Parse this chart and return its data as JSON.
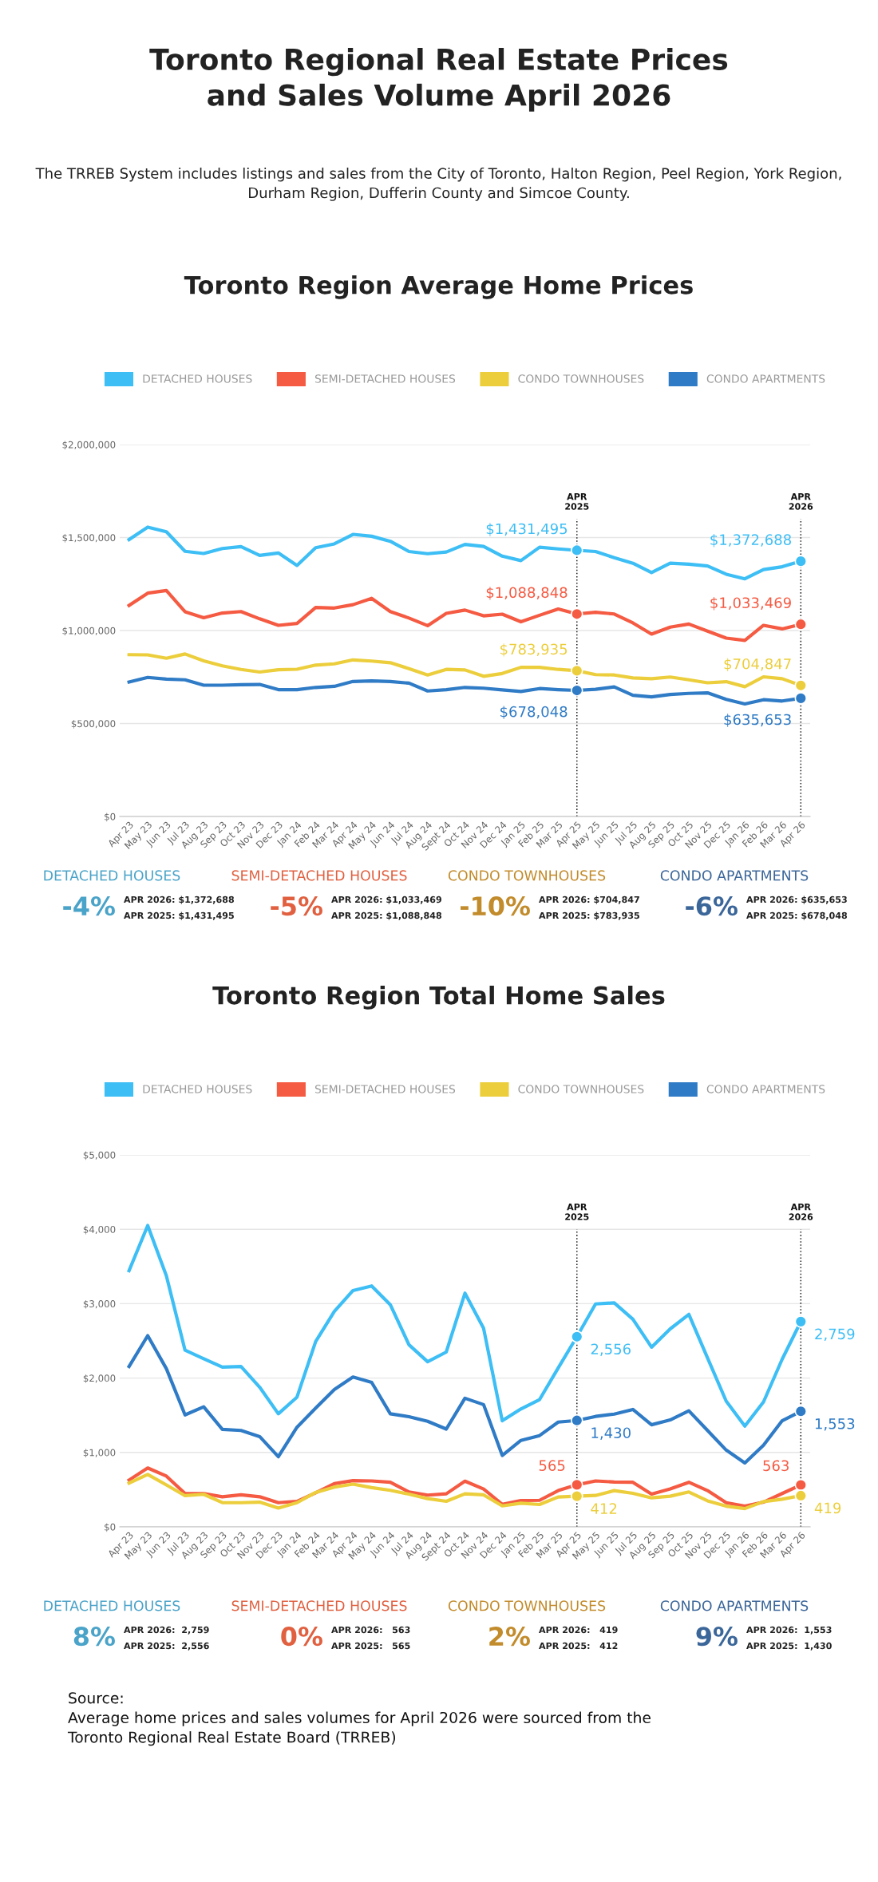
{
  "chart_data": [
    {
      "type": "other",
      "title": "Toronto Regional Real Estate Prices\nand Sales Volume April 2026",
      "subtitle": "The TRREB System includes listings and sales from the City of Toronto, Halton Region, Peel Region, York Region,\nDurham Region, Dufferin County and Simcoe County."
    },
    {
      "type": "line",
      "title": "Toronto Region Average Home Prices",
      "legend": "top",
      "grid": "y",
      "categories": [
        "Apr 23",
        "May 23",
        "Jun 23",
        "Jul 23",
        "Aug 23",
        "Sep 23",
        "Oct 23",
        "Nov 23",
        "Dec 23",
        "Jan 24",
        "Feb 24",
        "Mar 24",
        "Apr 24",
        "May 24",
        "Jun 24",
        "Jul 24",
        "Aug 24",
        "Sept 24",
        "Oct 24",
        "Nov 24",
        "Dec 24",
        "Jan 25",
        "Feb 25",
        "Mar 25",
        "Apr 25",
        "May 25",
        "Jun 25",
        "Jul 25",
        "Aug 25",
        "Sep 25",
        "Oct 25",
        "Nov 25",
        "Dec 25",
        "Jan 26",
        "Feb 26",
        "Mar 26",
        "Apr 26"
      ],
      "ylim": [
        0,
        2000000
      ],
      "yticks": [
        {
          "value": 0,
          "label": "$0"
        },
        {
          "value": 500000,
          "label": "$500,000"
        },
        {
          "value": 1000000,
          "label": "$1,000,000"
        },
        {
          "value": 1500000,
          "label": "$1,500,000"
        },
        {
          "value": 2000000,
          "label": "$2,000,000"
        }
      ],
      "ref_lines": [
        {
          "axis": "x",
          "value": "Apr 25",
          "label": "APR\n2025",
          "line_style": "dotted"
        },
        {
          "axis": "x",
          "value": "Apr 26",
          "label": "APR\n2026",
          "line_style": "dotted"
        }
      ],
      "series": [
        {
          "name": "DETACHED HOUSES",
          "color": "#3dbef5",
          "values": [
            1489000,
            1556000,
            1531000,
            1426000,
            1414000,
            1441000,
            1451000,
            1404000,
            1417000,
            1350000,
            1445000,
            1466000,
            1517000,
            1507000,
            1480000,
            1425000,
            1413000,
            1422000,
            1463000,
            1452000,
            1400000,
            1376000,
            1448000,
            1439000,
            1431495,
            1425000,
            1392000,
            1362000,
            1312000,
            1362000,
            1357000,
            1347000,
            1303000,
            1278000,
            1328000,
            1343000,
            1372688
          ],
          "value_labels": [
            null,
            null,
            null,
            null,
            null,
            null,
            null,
            null,
            null,
            null,
            null,
            null,
            null,
            null,
            null,
            null,
            null,
            null,
            null,
            null,
            null,
            null,
            null,
            null,
            "$1,431,495",
            null,
            null,
            null,
            null,
            null,
            null,
            null,
            null,
            null,
            null,
            null,
            "$1,372,688"
          ]
        },
        {
          "name": "SEMI-DETACHED HOUSES",
          "color": "#f55a42",
          "values": [
            1135000,
            1201000,
            1215000,
            1101000,
            1069000,
            1094000,
            1102000,
            1063000,
            1028000,
            1038000,
            1124000,
            1121000,
            1139000,
            1173000,
            1102000,
            1067000,
            1026000,
            1092000,
            1110000,
            1079000,
            1088000,
            1047000,
            1082000,
            1116000,
            1088848,
            1098000,
            1089000,
            1041000,
            981000,
            1018000,
            1035000,
            997000,
            959000,
            947000,
            1028000,
            1009000,
            1033469
          ],
          "value_labels": [
            null,
            null,
            null,
            null,
            null,
            null,
            null,
            null,
            null,
            null,
            null,
            null,
            null,
            null,
            null,
            null,
            null,
            null,
            null,
            null,
            null,
            null,
            null,
            null,
            "$1,088,848",
            null,
            null,
            null,
            null,
            null,
            null,
            null,
            null,
            null,
            null,
            null,
            "$1,033,469"
          ]
        },
        {
          "name": "CONDO TOWNHOUSES",
          "color": "#ecce3c",
          "values": [
            870000,
            869000,
            851000,
            874000,
            837000,
            810000,
            791000,
            777000,
            789000,
            792000,
            814000,
            821000,
            842000,
            836000,
            827000,
            795000,
            761000,
            791000,
            788000,
            754000,
            769000,
            802000,
            802000,
            791000,
            783935,
            763000,
            761000,
            745000,
            741000,
            750000,
            735000,
            719000,
            725000,
            698000,
            751000,
            741000,
            704847
          ],
          "value_labels": [
            null,
            null,
            null,
            null,
            null,
            null,
            null,
            null,
            null,
            null,
            null,
            null,
            null,
            null,
            null,
            null,
            null,
            null,
            null,
            null,
            null,
            null,
            null,
            null,
            "$783,935",
            null,
            null,
            null,
            null,
            null,
            null,
            null,
            null,
            null,
            null,
            null,
            "$704,847"
          ]
        },
        {
          "name": "CONDO APARTMENTS",
          "color": "#2f7bc6",
          "values": [
            723000,
            748000,
            739000,
            735000,
            706000,
            706000,
            709000,
            710000,
            682000,
            682000,
            694000,
            700000,
            726000,
            729000,
            726000,
            717000,
            675000,
            682000,
            694000,
            690000,
            681000,
            672000,
            688000,
            682000,
            678048,
            684000,
            697000,
            652000,
            643000,
            656000,
            662000,
            665000,
            630000,
            605000,
            628000,
            621000,
            635653
          ],
          "value_labels": [
            null,
            null,
            null,
            null,
            null,
            null,
            null,
            null,
            null,
            null,
            null,
            null,
            null,
            null,
            null,
            null,
            null,
            null,
            null,
            null,
            null,
            null,
            null,
            null,
            "$678,048",
            null,
            null,
            null,
            null,
            null,
            null,
            null,
            null,
            null,
            null,
            null,
            "$635,653"
          ]
        }
      ]
    },
    {
      "type": "other",
      "categories": [
        "DETACHED HOUSES",
        "SEMI-DETACHED HOUSES",
        "CONDO TOWNHOUSES",
        "CONDO APARTMENTS"
      ],
      "colors": [
        "#4aa3c8",
        "#e06040",
        "#c28b2b",
        "#3b6699"
      ],
      "value_labels": [
        "-4%",
        "-5%",
        "-10%",
        "-6%"
      ],
      "annotations": [
        "APR 2026: $1,372,688",
        "APR 2025: $1,431,495",
        "APR 2026: $1,033,469",
        "APR 2025: $1,088,848",
        "APR 2026: $704,847",
        "APR 2025: $783,935",
        "APR 2026: $635,653",
        "APR 2025: $678,048"
      ]
    },
    {
      "type": "line",
      "title": "Toronto Region Total Home Sales",
      "legend": "top",
      "grid": "y",
      "categories": [
        "Apr 23",
        "May 23",
        "Jun 23",
        "Jul 23",
        "Aug 23",
        "Sep 23",
        "Oct 23",
        "Nov 23",
        "Dec 23",
        "Jan 24",
        "Feb 24",
        "Mar 24",
        "Apr 24",
        "May 24",
        "Jun 24",
        "Jul 24",
        "Aug 24",
        "Sept 24",
        "Oct 24",
        "Nov 24",
        "Dec 24",
        "Jan 25",
        "Feb 25",
        "Mar 25",
        "Apr 25",
        "May 25",
        "Jun 25",
        "Jul 25",
        "Aug 25",
        "Sep 25",
        "Oct 25",
        "Nov 25",
        "Dec 25",
        "Jan 26",
        "Feb 26",
        "Mar 26",
        "Apr 26"
      ],
      "ylim": [
        0,
        5000
      ],
      "yticks": [
        {
          "value": 0,
          "label": "$0"
        },
        {
          "value": 1000,
          "label": "$1,000"
        },
        {
          "value": 2000,
          "label": "$2,000"
        },
        {
          "value": 3000,
          "label": "$3,000"
        },
        {
          "value": 4000,
          "label": "$4,000"
        },
        {
          "value": 5000,
          "label": "$5,000"
        }
      ],
      "ref_lines": [
        {
          "axis": "x",
          "value": "Apr 25",
          "label": "APR\n2025",
          "line_style": "dotted"
        },
        {
          "axis": "x",
          "value": "Apr 26",
          "label": "APR\n2026",
          "line_style": "dotted"
        }
      ],
      "series": [
        {
          "name": "DETACHED HOUSES",
          "color": "#3dbef5",
          "values": [
            3444,
            4051,
            3375,
            2375,
            2260,
            2148,
            2155,
            1877,
            1520,
            1744,
            2491,
            2895,
            3177,
            3238,
            2986,
            2448,
            2220,
            2350,
            3141,
            2668,
            1426,
            1585,
            1711,
            2137,
            2556,
            2996,
            3011,
            2791,
            2415,
            2661,
            2856,
            2271,
            1690,
            1354,
            1679,
            2253,
            2759
          ],
          "value_labels": [
            null,
            null,
            null,
            null,
            null,
            null,
            null,
            null,
            null,
            null,
            null,
            null,
            null,
            null,
            null,
            null,
            null,
            null,
            null,
            null,
            null,
            null,
            null,
            null,
            "2,556",
            null,
            null,
            null,
            null,
            null,
            null,
            null,
            null,
            null,
            null,
            null,
            "2,759"
          ]
        },
        {
          "name": "SEMI-DETACHED HOUSES",
          "color": "#f55a42",
          "values": [
            628,
            791,
            682,
            448,
            448,
            404,
            430,
            404,
            325,
            343,
            458,
            581,
            621,
            617,
            599,
            469,
            426,
            444,
            614,
            509,
            303,
            354,
            357,
            487,
            565,
            617,
            603,
            599,
            440,
            509,
            599,
            487,
            325,
            278,
            332,
            448,
            563
          ],
          "value_labels": [
            null,
            null,
            null,
            null,
            null,
            null,
            null,
            null,
            null,
            null,
            null,
            null,
            null,
            null,
            null,
            null,
            null,
            null,
            null,
            null,
            null,
            null,
            null,
            null,
            "565",
            null,
            null,
            null,
            null,
            null,
            null,
            null,
            null,
            null,
            null,
            null,
            "563"
          ]
        },
        {
          "name": "CONDO TOWNHOUSES",
          "color": "#ecce3c",
          "values": [
            588,
            704,
            563,
            419,
            437,
            325,
            325,
            332,
            253,
            325,
            462,
            534,
            574,
            527,
            491,
            440,
            379,
            343,
            444,
            430,
            282,
            318,
            300,
            401,
            412,
            422,
            487,
            451,
            390,
            412,
            469,
            350,
            278,
            245,
            339,
            372,
            419
          ],
          "value_labels": [
            null,
            null,
            null,
            null,
            null,
            null,
            null,
            null,
            null,
            null,
            null,
            null,
            null,
            null,
            null,
            null,
            null,
            null,
            null,
            null,
            null,
            null,
            null,
            null,
            "412",
            null,
            null,
            null,
            null,
            null,
            null,
            null,
            null,
            null,
            null,
            null,
            "419"
          ]
        },
        {
          "name": "CONDO APARTMENTS",
          "color": "#2f7bc6",
          "values": [
            2155,
            2570,
            2126,
            1505,
            1614,
            1310,
            1296,
            1213,
            942,
            1339,
            1596,
            1845,
            2014,
            1942,
            1520,
            1480,
            1419,
            1314,
            1729,
            1643,
            960,
            1162,
            1227,
            1408,
            1430,
            1484,
            1516,
            1578,
            1372,
            1437,
            1560,
            1296,
            1032,
            859,
            1097,
            1426,
            1553
          ],
          "value_labels": [
            null,
            null,
            null,
            null,
            null,
            null,
            null,
            null,
            null,
            null,
            null,
            null,
            null,
            null,
            null,
            null,
            null,
            null,
            null,
            null,
            null,
            null,
            null,
            null,
            "1,430",
            null,
            null,
            null,
            null,
            null,
            null,
            null,
            null,
            null,
            null,
            null,
            "1,553"
          ]
        }
      ]
    },
    {
      "type": "other",
      "categories": [
        "DETACHED HOUSES",
        "SEMI-DETACHED HOUSES",
        "CONDO TOWNHOUSES",
        "CONDO APARTMENTS"
      ],
      "colors": [
        "#4aa3c8",
        "#e06040",
        "#c28b2b",
        "#3b6699"
      ],
      "value_labels": [
        "8%",
        "0%",
        "2%",
        "9%"
      ],
      "annotations": [
        "APR 2026:  2,759",
        "APR 2025:  2,556",
        "APR 2026:   563",
        "APR 2025:   565",
        "APR 2026:   419",
        "APR 2025:   412",
        "APR 2026:  1,553",
        "APR 2025:  1,430"
      ]
    },
    {
      "type": "other",
      "annotations": [
        "Source:\nAverage home prices and sales volumes for April 2026 were sourced from the\nToronto Regional Real Estate Board (TRREB)"
      ]
    }
  ]
}
